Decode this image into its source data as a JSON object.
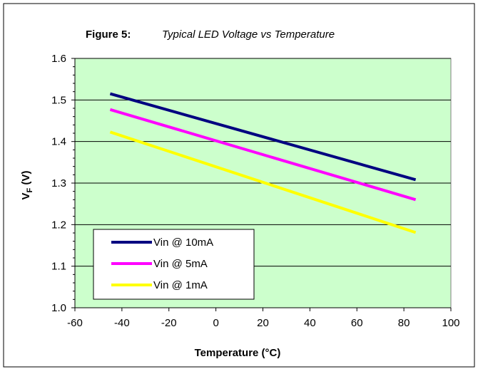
{
  "chart_data": {
    "type": "line",
    "title_prefix": "Figure 5:",
    "title": "Typical LED Voltage vs Temperature",
    "xlabel": "Temperature (°C)",
    "ylabel_main": "V",
    "ylabel_sub": "F",
    "ylabel_suffix": " (V)",
    "xlim": [
      -60,
      100
    ],
    "ylim": [
      1.0,
      1.6
    ],
    "xticks": [
      -60,
      -40,
      -20,
      0,
      20,
      40,
      60,
      80,
      100
    ],
    "yticks": [
      1.0,
      1.1,
      1.2,
      1.3,
      1.4,
      1.5,
      1.6
    ],
    "ytick_labels": [
      "1.0",
      "1.1",
      "1.2",
      "1.3",
      "1.4",
      "1.5",
      "1.6"
    ],
    "grid": "horizontal",
    "legend_position": "bottom-left",
    "plot_background": "#ccffcc",
    "series": [
      {
        "name": "Vin @ 10mA",
        "color": "#000080",
        "x": [
          -45,
          85
        ],
        "y": [
          1.515,
          1.308
        ]
      },
      {
        "name": "Vin @ 5mA",
        "color": "#ff00ff",
        "x": [
          -45,
          85
        ],
        "y": [
          1.477,
          1.26
        ]
      },
      {
        "name": "Vin @ 1mA",
        "color": "#ffff00",
        "x": [
          -45,
          85
        ],
        "y": [
          1.423,
          1.181
        ]
      }
    ]
  }
}
